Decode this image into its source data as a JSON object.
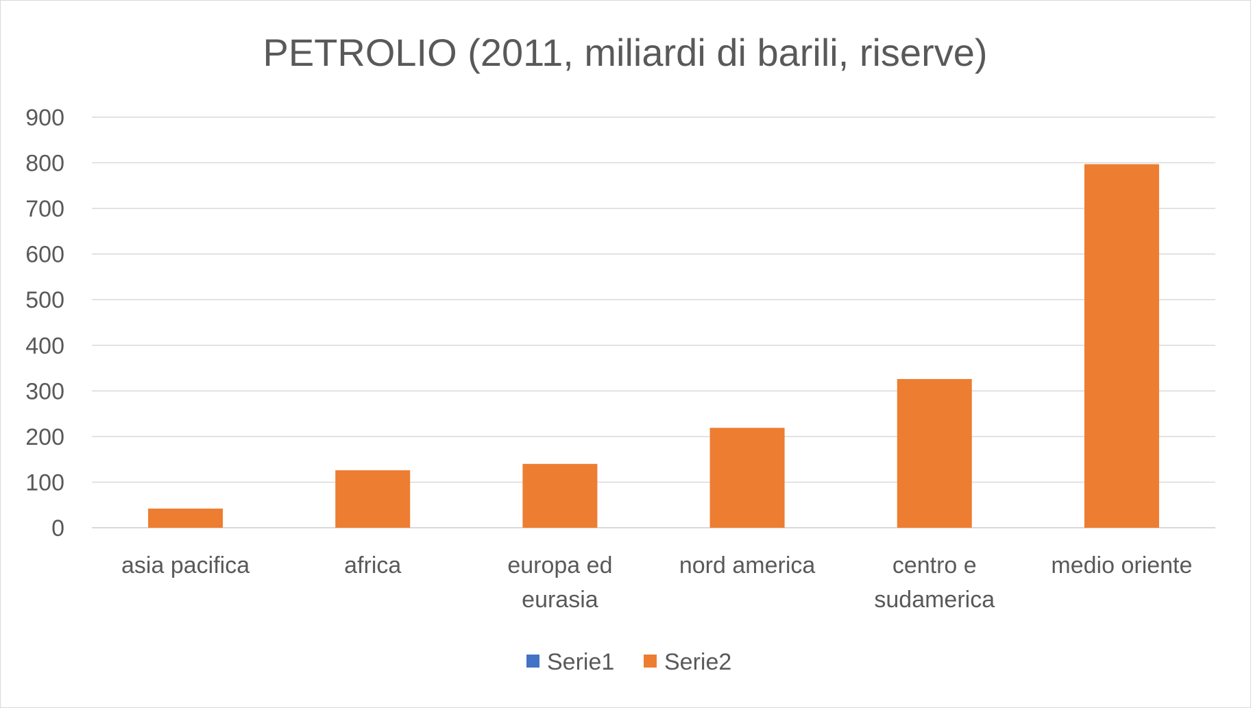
{
  "chart_data": {
    "type": "bar",
    "title": "PETROLIO (2011, miliardi di barili, riserve)",
    "xlabel": "",
    "ylabel": "",
    "ylim": [
      0,
      900
    ],
    "yticks": [
      0,
      100,
      200,
      300,
      400,
      500,
      600,
      700,
      800,
      900
    ],
    "grid": true,
    "legend_position": "bottom",
    "categories": [
      [
        "asia pacifica"
      ],
      [
        "africa"
      ],
      [
        "europa ed",
        "eurasia"
      ],
      [
        "nord america"
      ],
      [
        "centro e",
        "sudamerica"
      ],
      [
        "medio oriente"
      ]
    ],
    "series": [
      {
        "name": "Serie1",
        "color": "#4472c4",
        "values": [
          0,
          0,
          0,
          0,
          0,
          0
        ]
      },
      {
        "name": "Serie2",
        "color": "#ed7d31",
        "values": [
          42,
          126,
          140,
          219,
          326,
          797
        ]
      }
    ]
  }
}
